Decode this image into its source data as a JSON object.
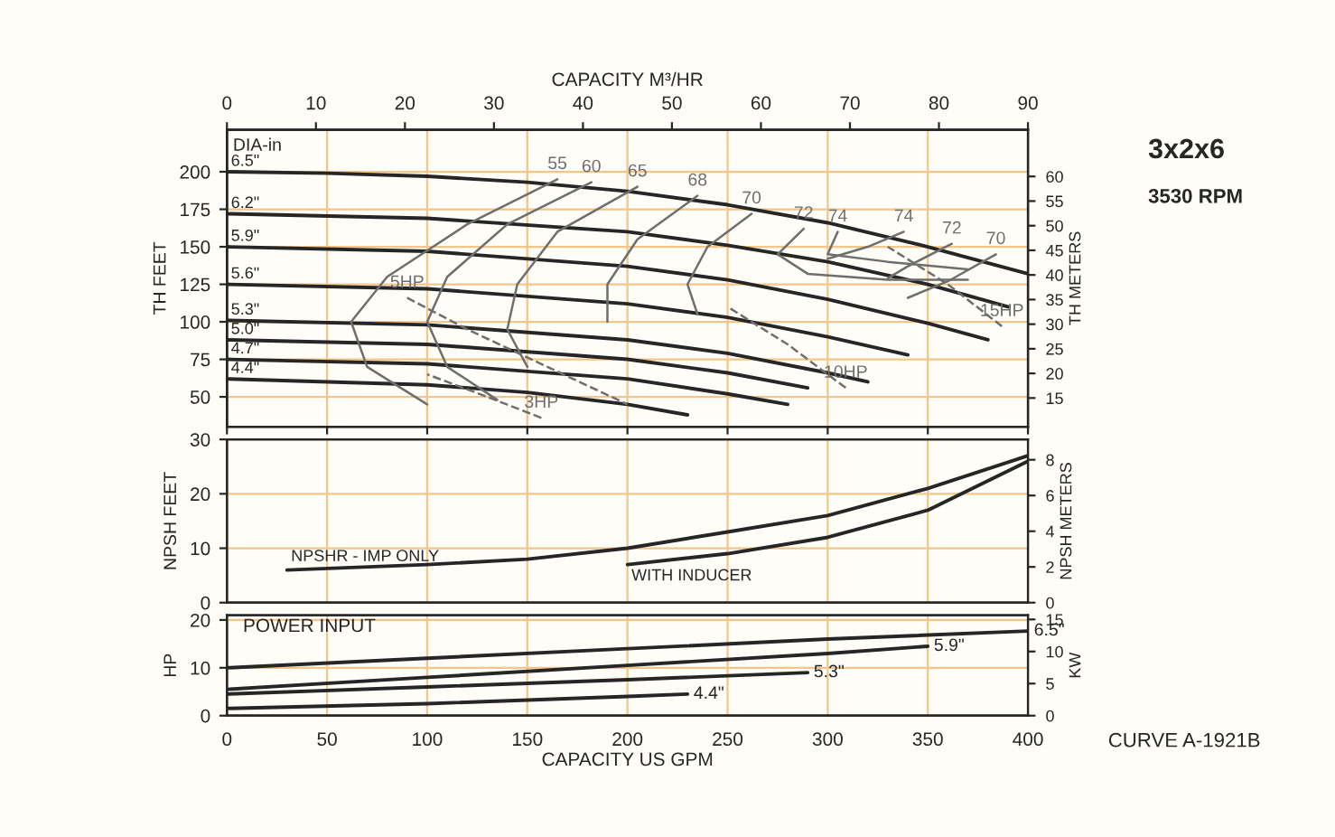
{
  "chart_data": [
    {
      "type": "line",
      "ylabel": "TH FEET",
      "y2label": "TH METERS",
      "x2label": "CAPACITY M³/HR",
      "legend_title": "DIA-in",
      "xlim": [
        0,
        400
      ],
      "xticks": [
        0,
        50,
        100,
        150,
        200,
        250,
        300,
        350,
        400
      ],
      "x2lim": [
        0,
        90
      ],
      "x2ticks": [
        0,
        10,
        20,
        30,
        40,
        50,
        60,
        70,
        80,
        90
      ],
      "ylim": [
        30,
        228
      ],
      "yticks": [
        50,
        75,
        100,
        125,
        150,
        175,
        200
      ],
      "y2lim": [
        9.14,
        69.49
      ],
      "y2ticks": [
        15,
        20,
        25,
        30,
        35,
        40,
        45,
        50,
        55,
        60
      ],
      "tick_labels": "y",
      "grid": true,
      "marker": "none",
      "annotations": [
        "3x2x6",
        "3530 RPM"
      ],
      "series": [
        {
          "name": "6.5\"",
          "color": "#262626",
          "line_style": "solid",
          "x": [
            0,
            50,
            100,
            150,
            200,
            250,
            300,
            350,
            400
          ],
          "values": [
            200,
            199,
            197,
            193,
            187,
            178,
            166,
            150,
            132
          ]
        },
        {
          "name": "6.2\"",
          "color": "#262626",
          "line_style": "solid",
          "x": [
            0,
            100,
            200,
            250,
            300,
            350,
            390
          ],
          "values": [
            172,
            169,
            160,
            151,
            140,
            125,
            110
          ]
        },
        {
          "name": "5.9\"",
          "color": "#262626",
          "line_style": "solid",
          "x": [
            0,
            100,
            200,
            250,
            300,
            350,
            380
          ],
          "values": [
            150,
            147,
            137,
            128,
            115,
            99,
            88
          ]
        },
        {
          "name": "5.6\"",
          "color": "#262626",
          "line_style": "solid",
          "x": [
            0,
            100,
            200,
            250,
            300,
            340
          ],
          "values": [
            125,
            122,
            112,
            103,
            90,
            78
          ]
        },
        {
          "name": "5.3\"",
          "color": "#262626",
          "line_style": "solid",
          "x": [
            0,
            100,
            200,
            250,
            300,
            320
          ],
          "values": [
            101,
            98,
            88,
            79,
            66,
            60
          ]
        },
        {
          "name": "5.0\"",
          "color": "#262626",
          "line_style": "solid",
          "x": [
            0,
            100,
            200,
            250,
            290
          ],
          "values": [
            88,
            85,
            75,
            66,
            56
          ]
        },
        {
          "name": "4.7\"",
          "color": "#262626",
          "line_style": "solid",
          "x": [
            0,
            100,
            200,
            250,
            280
          ],
          "values": [
            75,
            72,
            62,
            52,
            45
          ]
        },
        {
          "name": "4.4\"",
          "color": "#262626",
          "line_style": "solid",
          "x": [
            0,
            100,
            150,
            200,
            230
          ],
          "values": [
            62,
            58,
            53,
            45,
            38
          ]
        },
        {
          "name": "55",
          "color": "#6e6e6e",
          "line_style": "solid",
          "x": [
            165,
            120,
            80,
            62,
            70,
            100
          ],
          "values": [
            195,
            165,
            130,
            100,
            70,
            45
          ]
        },
        {
          "name": "60",
          "color": "#6e6e6e",
          "line_style": "solid",
          "x": [
            182,
            140,
            110,
            100,
            110,
            135
          ],
          "values": [
            193,
            165,
            130,
            100,
            70,
            48
          ]
        },
        {
          "name": "65",
          "color": "#6e6e6e",
          "line_style": "solid",
          "x": [
            205,
            165,
            145,
            140,
            150
          ],
          "values": [
            190,
            160,
            125,
            95,
            70
          ]
        },
        {
          "name": "68",
          "color": "#6e6e6e",
          "line_style": "solid",
          "x": [
            235,
            205,
            190,
            190
          ],
          "values": [
            184,
            155,
            125,
            100
          ]
        },
        {
          "name": "70",
          "color": "#6e6e6e",
          "line_style": "solid",
          "x": [
            262,
            240,
            230,
            235
          ],
          "values": [
            172,
            150,
            125,
            105
          ]
        },
        {
          "name": "72",
          "color": "#6e6e6e",
          "line_style": "solid",
          "x": [
            288,
            275,
            290,
            330,
            370
          ],
          "values": [
            162,
            145,
            132,
            128,
            128
          ]
        },
        {
          "name": "74",
          "color": "#6e6e6e",
          "line_style": "solid",
          "x": [
            305,
            300,
            330,
            370
          ],
          "values": [
            160,
            145,
            140,
            135
          ]
        },
        {
          "name": "74",
          "color": "#6e6e6e",
          "line_style": "solid",
          "x": [
            338,
            320,
            300
          ],
          "values": [
            160,
            150,
            142
          ]
        },
        {
          "name": "72",
          "color": "#6e6e6e",
          "line_style": "solid",
          "x": [
            362,
            340,
            330
          ],
          "values": [
            152,
            137,
            129
          ]
        },
        {
          "name": "70",
          "color": "#6e6e6e",
          "line_style": "solid",
          "x": [
            384,
            360,
            340
          ],
          "values": [
            145,
            127,
            116
          ]
        },
        {
          "name": "5HP",
          "color": "#6e6e6e",
          "line_style": "dashed",
          "x": [
            90,
            120,
            160,
            200
          ],
          "values": [
            116,
            95,
            70,
            45
          ]
        },
        {
          "name": "3HP",
          "color": "#6e6e6e",
          "line_style": "dashed",
          "x": [
            157,
            130,
            100
          ],
          "values": [
            36,
            50,
            65
          ]
        },
        {
          "name": "10HP",
          "color": "#6e6e6e",
          "line_style": "dashed",
          "x": [
            309,
            280,
            250
          ],
          "values": [
            56,
            85,
            110
          ]
        },
        {
          "name": "15HP",
          "color": "#6e6e6e",
          "line_style": "dashed",
          "x": [
            387,
            360,
            330
          ],
          "values": [
            97,
            125,
            150
          ]
        }
      ]
    },
    {
      "type": "line",
      "ylabel": "NPSH FEET",
      "y2label": "NPSH METERS",
      "xlim": [
        0,
        400
      ],
      "xticks": [
        0,
        50,
        100,
        150,
        200,
        250,
        300,
        350,
        400
      ],
      "ylim": [
        0,
        30
      ],
      "yticks": [
        0,
        10,
        20,
        30
      ],
      "y2lim": [
        0,
        9.14
      ],
      "y2ticks": [
        0,
        2,
        4,
        6,
        8
      ],
      "tick_labels": "y",
      "grid": true,
      "marker": "none",
      "series": [
        {
          "name": "NPSHR - IMP ONLY",
          "color": "#262626",
          "line_style": "solid",
          "x": [
            30,
            100,
            150,
            200,
            250,
            300,
            350,
            400
          ],
          "values": [
            6,
            7,
            8,
            10,
            13,
            16,
            21,
            27
          ]
        },
        {
          "name": "WITH INDUCER",
          "color": "#262626",
          "line_style": "solid",
          "x": [
            200,
            250,
            300,
            350,
            400
          ],
          "values": [
            7,
            9,
            12,
            17,
            26
          ]
        }
      ]
    },
    {
      "type": "line",
      "title": "POWER INPUT",
      "ylabel": "HP",
      "y2label": "KW",
      "xlabel": "CAPACITY US GPM",
      "xlim": [
        0,
        400
      ],
      "xticks": [
        0,
        50,
        100,
        150,
        200,
        250,
        300,
        350,
        400
      ],
      "ylim": [
        0,
        21
      ],
      "yticks": [
        0,
        10,
        20
      ],
      "y2lim": [
        0,
        15.66
      ],
      "y2ticks": [
        0,
        5,
        10,
        15
      ],
      "grid": true,
      "marker": "none",
      "annotations": [
        "CURVE A-1921B"
      ],
      "series": [
        {
          "name": "6.5\"",
          "color": "#262626",
          "line_style": "solid",
          "x": [
            0,
            100,
            200,
            300,
            400
          ],
          "values": [
            10,
            12,
            14,
            16,
            17.7
          ]
        },
        {
          "name": "5.9\"",
          "color": "#262626",
          "line_style": "solid",
          "x": [
            0,
            100,
            200,
            300,
            350
          ],
          "values": [
            5.5,
            8,
            10.5,
            13,
            14.5
          ]
        },
        {
          "name": "5.3\"",
          "color": "#262626",
          "line_style": "solid",
          "x": [
            0,
            100,
            200,
            290
          ],
          "values": [
            4.5,
            6,
            7.5,
            9
          ]
        },
        {
          "name": "4.4\"",
          "color": "#262626",
          "line_style": "solid",
          "x": [
            0,
            100,
            200,
            230
          ],
          "values": [
            1.5,
            2.5,
            4,
            4.5
          ]
        }
      ]
    }
  ]
}
